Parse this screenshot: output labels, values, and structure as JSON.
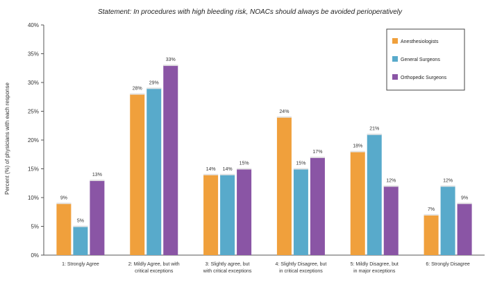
{
  "chart_data": {
    "type": "bar",
    "title": "Statement: In procedures with high bleeding risk, NOACs should always be avoided perioperatively",
    "xlabel": "",
    "ylabel": "Percent (%) of physicians with each response",
    "ylim": [
      0,
      40
    ],
    "yticks": [
      "0%",
      "5%",
      "10%",
      "15%",
      "20%",
      "25%",
      "30%",
      "35%",
      "40%"
    ],
    "categories": [
      [
        "1: Strongly Agree"
      ],
      [
        "2: Mildly Agree, but with",
        "critical exceptions"
      ],
      [
        "3: Slightly agree, but",
        "with critical exceptions"
      ],
      [
        "4: Slightly Disagree, but",
        "in critical exceptions"
      ],
      [
        "5: Mildly Disagree, but",
        "in major exceptions"
      ],
      [
        "6: Strongly Disagree"
      ]
    ],
    "series": [
      {
        "name": "Anesthesiologists",
        "color": "#f0a03c",
        "values": [
          9,
          28,
          14,
          24,
          18,
          7
        ],
        "labels": [
          "9%",
          "28%",
          "14%",
          "24%",
          "18%",
          "7%"
        ]
      },
      {
        "name": "General Surgeons",
        "color": "#58aacb",
        "values": [
          5,
          29,
          14,
          15,
          21,
          12
        ],
        "labels": [
          "5%",
          "29%",
          "14%",
          "15%",
          "21%",
          "12%"
        ]
      },
      {
        "name": "Orthopedic Surgeons",
        "color": "#8a55a5",
        "values": [
          13,
          33,
          15,
          17,
          12,
          9
        ],
        "labels": [
          "13%",
          "33%",
          "15%",
          "17%",
          "12%",
          "9%"
        ]
      }
    ],
    "legend_position": "top-right",
    "grid": false
  }
}
